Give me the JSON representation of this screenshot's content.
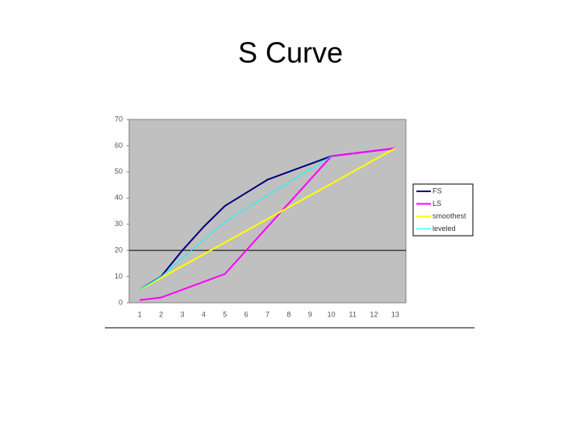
{
  "chart_data": {
    "type": "line",
    "title": "S Curve",
    "categories": [
      "1",
      "2",
      "3",
      "4",
      "5",
      "6",
      "7",
      "8",
      "9",
      "10",
      "11",
      "12",
      "13"
    ],
    "series": [
      {
        "name": "FS",
        "color": "#000080",
        "values": [
          5,
          10,
          20,
          29,
          37,
          42,
          47,
          50,
          53,
          56,
          57,
          58,
          59
        ]
      },
      {
        "name": "LS",
        "color": "#ff00ff",
        "values": [
          1,
          2,
          5,
          8,
          11,
          20,
          29,
          38,
          47,
          56,
          57,
          58,
          59
        ]
      },
      {
        "name": "smoothest",
        "color": "#ffff00",
        "values": [
          5,
          9.5,
          14,
          18.5,
          23,
          27.5,
          32,
          36.5,
          41,
          45.5,
          50,
          54.5,
          59
        ]
      },
      {
        "name": "leveled",
        "color": "#00ffff",
        "values": [
          5,
          10,
          17,
          24,
          31,
          36,
          41,
          46,
          51,
          56,
          null,
          null,
          null
        ]
      }
    ],
    "ylim": [
      0,
      70
    ],
    "yticks": [
      0,
      10,
      20,
      30,
      40,
      50,
      60,
      70
    ],
    "hline": 20,
    "plot_color": "#c0c0c0",
    "legend": "right"
  }
}
